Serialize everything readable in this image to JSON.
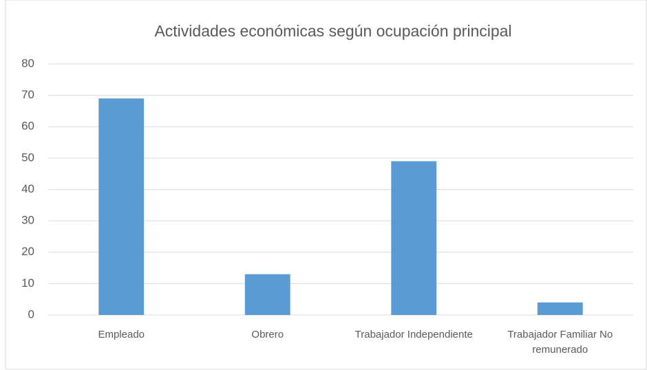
{
  "chart_data": {
    "type": "bar",
    "title": "Actividades económicas según ocupación principal",
    "categories": [
      "Empleado",
      "Obrero",
      "Trabajador Independiente",
      "Trabajador Familiar No remunerado"
    ],
    "values": [
      69,
      13,
      49,
      4
    ],
    "color": "#5b9bd5",
    "ylim": [
      0,
      80
    ],
    "yticks": [
      0,
      10,
      20,
      30,
      40,
      50,
      60,
      70,
      80
    ],
    "grid": true
  }
}
